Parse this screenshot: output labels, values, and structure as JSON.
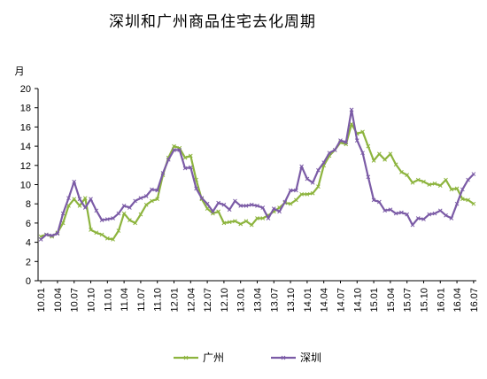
{
  "chart_data": {
    "type": "line",
    "title": "深圳和广州商品住宅去化周期",
    "ylabel": "月",
    "ylim": [
      0,
      20
    ],
    "yticks": [
      0,
      2,
      4,
      6,
      8,
      10,
      12,
      14,
      16,
      18,
      20
    ],
    "grid": false,
    "legend_position": "bottom",
    "xtick_labels": [
      "10.01",
      "10.04",
      "10.07",
      "10.10",
      "11.01",
      "11.04",
      "11.07",
      "11.10",
      "12.01",
      "12.04",
      "12.07",
      "12.10",
      "13.01",
      "13.04",
      "13.07",
      "13.10",
      "14.01",
      "14.04",
      "14.07",
      "14.10",
      "15.01",
      "15.04",
      "15.07",
      "15.10",
      "16.01",
      "16.04",
      "16.07"
    ],
    "series": [
      {
        "name": "广州",
        "color": "#8DB43E",
        "values": [
          4.6,
          4.8,
          4.6,
          5.0,
          6.0,
          7.8,
          8.5,
          7.8,
          8.6,
          5.3,
          5.0,
          4.8,
          4.4,
          4.3,
          5.2,
          7.0,
          6.3,
          6.0,
          6.9,
          7.9,
          8.3,
          8.5,
          11.0,
          12.8,
          14.0,
          13.8,
          12.8,
          13.0,
          10.5,
          8.5,
          7.5,
          7.0,
          7.2,
          6.0,
          6.1,
          6.2,
          5.9,
          6.2,
          5.8,
          6.5,
          6.5,
          6.8,
          7.2,
          7.6,
          8.1,
          8.0,
          8.4,
          9.0,
          9.0,
          9.1,
          9.8,
          12.0,
          13.0,
          13.6,
          14.4,
          14.2,
          16.3,
          15.3,
          15.5,
          14.0,
          12.5,
          13.2,
          12.6,
          13.2,
          12.1,
          11.3,
          11.0,
          10.2,
          10.5,
          10.3,
          10.0,
          10.1,
          9.9,
          10.5,
          9.5,
          9.6,
          8.5,
          8.4,
          8.0
        ]
      },
      {
        "name": "深圳",
        "color": "#7B5BA6",
        "values": [
          4.3,
          4.8,
          4.7,
          4.9,
          7.0,
          8.6,
          10.3,
          8.5,
          7.6,
          8.5,
          7.3,
          6.3,
          6.4,
          6.5,
          7.0,
          7.8,
          7.6,
          8.3,
          8.6,
          8.8,
          9.5,
          9.4,
          11.2,
          12.6,
          13.6,
          13.6,
          11.7,
          11.8,
          9.6,
          8.6,
          8.0,
          7.2,
          8.1,
          7.9,
          7.4,
          8.3,
          7.8,
          7.8,
          7.9,
          7.8,
          7.6,
          6.5,
          7.5,
          7.2,
          8.2,
          9.4,
          9.4,
          11.9,
          10.6,
          10.2,
          11.5,
          12.3,
          13.3,
          13.6,
          14.6,
          14.4,
          17.8,
          14.6,
          13.3,
          10.8,
          8.4,
          8.2,
          7.3,
          7.4,
          7.0,
          7.1,
          6.9,
          5.8,
          6.5,
          6.4,
          6.9,
          7.0,
          7.3,
          6.8,
          6.5,
          8.0,
          9.5,
          10.5,
          11.1
        ]
      }
    ]
  }
}
